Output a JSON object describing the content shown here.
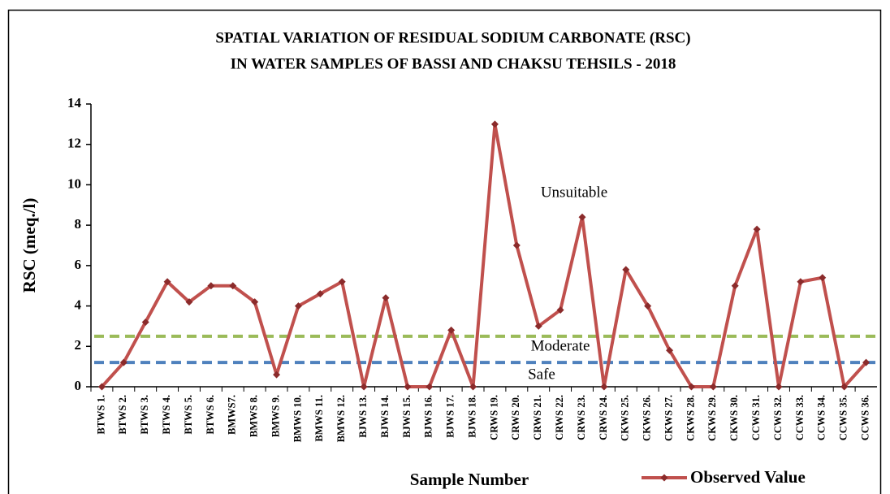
{
  "chart_data": {
    "type": "line",
    "title": [
      "SPATIAL VARIATION  OF RESIDUAL SODIUM CARBONATE (RSC)",
      "IN WATER SAMPLES OF BASSI AND CHAKSU TEHSILS - 2018"
    ],
    "x_label": "Sample Number",
    "y_label": "RSC (meq./l)",
    "categories": [
      "BTWS 1.",
      "BTWS 2.",
      "BTWS 3.",
      "BTWS 4.",
      "BTWS 5.",
      "BTWS 6.",
      "BMWS7.",
      "BMWS 8.",
      "BMWS 9.",
      "BMWS 10.",
      "BMWS 11.",
      "BMWS 12.",
      "BJWS 13.",
      "BJWS 14.",
      "BJWS 15.",
      "BJWS 16.",
      "BJWS 17.",
      "BJWS 18.",
      "CRWS 19.",
      "CRWS 20.",
      "CRWS 21.",
      "CRWS 22.",
      "CRWS 23.",
      "CRWS 24.",
      "CKWS 25.",
      "CKWS 26.",
      "CKWS 27.",
      "CKWS 28.",
      "CKWS 29.",
      "CKWS 30.",
      "CCWS 31.",
      "CCWS 32.",
      "CCWS 33.",
      "CCWS 34.",
      "CCWS 35.",
      "CCWS 36."
    ],
    "series": [
      {
        "name": "Observed Value",
        "color": "#c0504d",
        "values": [
          0,
          1.2,
          3.2,
          5.2,
          4.2,
          5.0,
          5.0,
          4.2,
          0.6,
          4.0,
          4.6,
          5.2,
          0,
          4.4,
          0,
          0,
          2.8,
          0,
          13.0,
          7.0,
          3.0,
          3.8,
          8.4,
          0,
          5.8,
          4.0,
          1.8,
          0,
          0,
          5.0,
          7.8,
          0,
          5.2,
          5.4,
          0,
          1.2
        ]
      }
    ],
    "reference_lines": [
      {
        "value": 2.5,
        "color": "#9bbb59"
      },
      {
        "value": 1.2,
        "color": "#4f81bd"
      }
    ],
    "annotations": [
      "Unsuitable",
      "Moderate",
      "Safe"
    ],
    "ylim": [
      0,
      14
    ],
    "yticks": [
      0,
      2,
      4,
      6,
      8,
      10,
      12,
      14
    ],
    "grid": false,
    "legend": "bottom-right"
  }
}
